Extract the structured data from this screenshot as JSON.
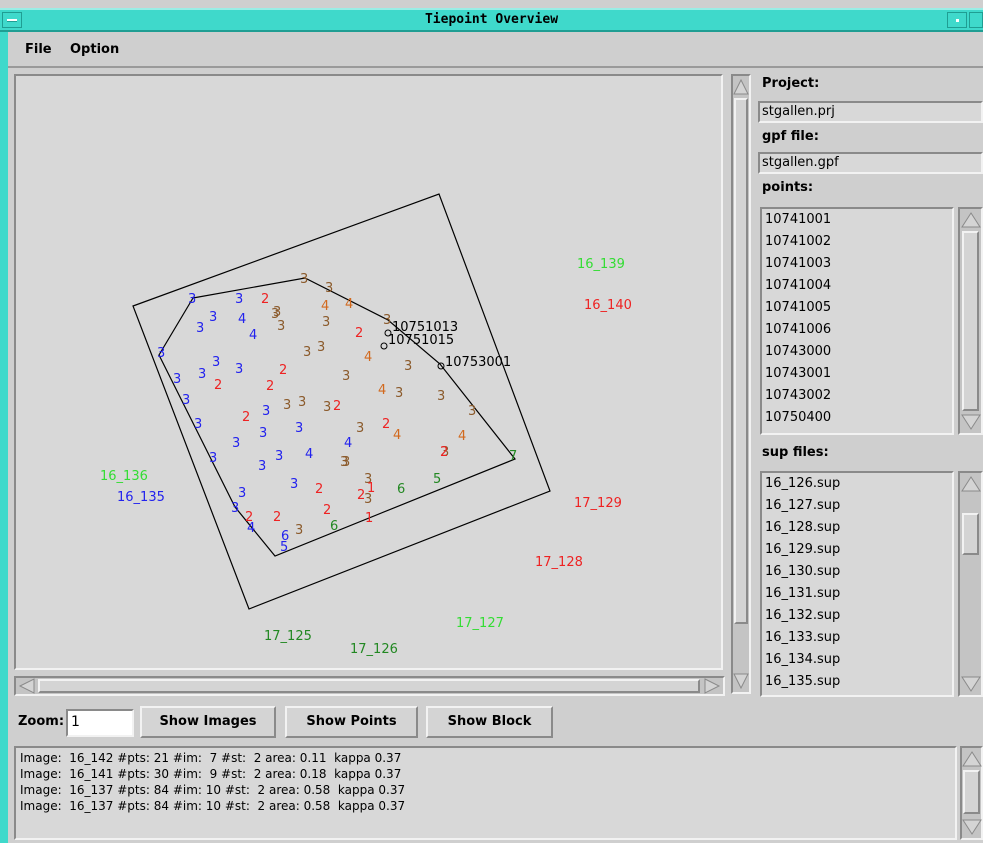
{
  "window": {
    "title": "Tiepoint Overview"
  },
  "menu": [
    "File",
    "Option"
  ],
  "project": {
    "label": "Project:",
    "value": "stgallen.prj"
  },
  "gpf": {
    "label": "gpf file:",
    "value": "stgallen.gpf"
  },
  "points": {
    "label": "points:",
    "items": [
      "10741001",
      "10741002",
      "10741003",
      "10741004",
      "10741005",
      "10741006",
      "10743000",
      "10743001",
      "10743002",
      "10750400"
    ]
  },
  "sup": {
    "label": "sup files:",
    "items": [
      "16_126.sup",
      "16_127.sup",
      "16_128.sup",
      "16_129.sup",
      "16_130.sup",
      "16_131.sup",
      "16_132.sup",
      "16_133.sup",
      "16_134.sup",
      "16_135.sup"
    ]
  },
  "zoom": {
    "label": "Zoom:",
    "value": "1"
  },
  "buttons": {
    "show_images": "Show Images",
    "show_points": "Show Points",
    "show_block": "Show Block"
  },
  "log": [
    "Image:  16_142 #pts: 21 #im:  7 #st:  2 area: 0.11  kappa 0.37",
    "Image:  16_141 #pts: 30 #im:  9 #st:  2 area: 0.18  kappa 0.37",
    "Image:  16_137 #pts: 84 #im: 10 #st:  2 area: 0.58  kappa 0.37",
    "Image:  16_137 #pts: 84 #im: 10 #st:  2 area: 0.58  kappa 0.37"
  ],
  "canvas": {
    "image_labels": [
      {
        "text": "16_139",
        "color": "#33dd33"
      },
      {
        "text": "16_140",
        "color": "#ee2222"
      },
      {
        "text": "16_136",
        "color": "#33dd33"
      },
      {
        "text": "16_135",
        "color": "#2222ee"
      },
      {
        "text": "17_129",
        "color": "#ee2222"
      },
      {
        "text": "17_128",
        "color": "#ee2222"
      },
      {
        "text": "17_127",
        "color": "#33dd33"
      },
      {
        "text": "17_125",
        "color": "#228822"
      },
      {
        "text": "17_126",
        "color": "#228822"
      }
    ],
    "point_labels": [
      {
        "text": "10751013"
      },
      {
        "text": "10751015"
      },
      {
        "text": "10753001"
      }
    ],
    "digits": [
      {
        "t": "3",
        "c": "#2222ee"
      },
      {
        "t": "3",
        "c": "#2222ee"
      },
      {
        "t": "2",
        "c": "#ee2222"
      },
      {
        "t": "3",
        "c": "#8b5a2b"
      },
      {
        "t": "3",
        "c": "#8b5a2b"
      },
      {
        "t": "3",
        "c": "#8b5a2b"
      },
      {
        "t": "4",
        "c": "#d2691e"
      },
      {
        "t": "3",
        "c": "#2222ee"
      },
      {
        "t": "3",
        "c": "#2222ee"
      },
      {
        "t": "4",
        "c": "#2222ee"
      },
      {
        "t": "3",
        "c": "#8b5a2b"
      },
      {
        "t": "4",
        "c": "#2222ee"
      },
      {
        "t": "3",
        "c": "#8b5a2b"
      },
      {
        "t": "3",
        "c": "#8b5a2b"
      },
      {
        "t": "4",
        "c": "#d2691e"
      },
      {
        "t": "2",
        "c": "#ee2222"
      },
      {
        "t": "3",
        "c": "#8b5a2b"
      },
      {
        "t": "3",
        "c": "#2222ee"
      },
      {
        "t": "3",
        "c": "#2222ee"
      },
      {
        "t": "3",
        "c": "#2222ee"
      },
      {
        "t": "3",
        "c": "#2222ee"
      },
      {
        "t": "3",
        "c": "#2222ee"
      },
      {
        "t": "2",
        "c": "#ee2222"
      },
      {
        "t": "3",
        "c": "#8b5a2b"
      },
      {
        "t": "3",
        "c": "#8b5a2b"
      },
      {
        "t": "4",
        "c": "#d2691e"
      },
      {
        "t": "3",
        "c": "#8b5a2b"
      },
      {
        "t": "3",
        "c": "#8b5a2b"
      },
      {
        "t": "3",
        "c": "#2222ee"
      },
      {
        "t": "3",
        "c": "#2222ee"
      },
      {
        "t": "2",
        "c": "#ee2222"
      },
      {
        "t": "2",
        "c": "#ee2222"
      },
      {
        "t": "3",
        "c": "#8b5a2b"
      },
      {
        "t": "3",
        "c": "#2222ee"
      },
      {
        "t": "3",
        "c": "#8b5a2b"
      },
      {
        "t": "3",
        "c": "#8b5a2b"
      },
      {
        "t": "2",
        "c": "#ee2222"
      },
      {
        "t": "4",
        "c": "#d2691e"
      },
      {
        "t": "3",
        "c": "#8b5a2b"
      },
      {
        "t": "3",
        "c": "#8b5a2b"
      },
      {
        "t": "3",
        "c": "#8b5a2b"
      },
      {
        "t": "3",
        "c": "#2222ee"
      },
      {
        "t": "3",
        "c": "#2222ee"
      },
      {
        "t": "2",
        "c": "#ee2222"
      },
      {
        "t": "3",
        "c": "#2222ee"
      },
      {
        "t": "4",
        "c": "#2222ee"
      },
      {
        "t": "3",
        "c": "#8b5a2b"
      },
      {
        "t": "2",
        "c": "#ee2222"
      },
      {
        "t": "4",
        "c": "#d2691e"
      },
      {
        "t": "4",
        "c": "#d2691e"
      },
      {
        "t": "3",
        "c": "#8b5a2b"
      },
      {
        "t": "3",
        "c": "#8b5a2b"
      },
      {
        "t": "3",
        "c": "#2222ee"
      },
      {
        "t": "3",
        "c": "#2222ee"
      },
      {
        "t": "3",
        "c": "#2222ee"
      },
      {
        "t": "4",
        "c": "#2222ee"
      },
      {
        "t": "3",
        "c": "#8b5a2b"
      },
      {
        "t": "3",
        "c": "#8b5a2b"
      },
      {
        "t": "2",
        "c": "#ee2222"
      },
      {
        "t": "7",
        "c": "#228822"
      },
      {
        "t": "3",
        "c": "#2222ee"
      },
      {
        "t": "3",
        "c": "#2222ee"
      },
      {
        "t": "2",
        "c": "#ee2222"
      },
      {
        "t": "3",
        "c": "#8b5a2b"
      },
      {
        "t": "2",
        "c": "#ee2222"
      },
      {
        "t": "1",
        "c": "#ee2222"
      },
      {
        "t": "6",
        "c": "#228822"
      },
      {
        "t": "5",
        "c": "#228822"
      },
      {
        "t": "3",
        "c": "#2222ee"
      },
      {
        "t": "2",
        "c": "#ee2222"
      },
      {
        "t": "2",
        "c": "#ee2222"
      },
      {
        "t": "1",
        "c": "#ee2222"
      },
      {
        "t": "4",
        "c": "#2222ee"
      },
      {
        "t": "2",
        "c": "#ee2222"
      },
      {
        "t": "6",
        "c": "#2222ee"
      },
      {
        "t": "3",
        "c": "#8b5a2b"
      },
      {
        "t": "6",
        "c": "#228822"
      },
      {
        "t": "5",
        "c": "#2222ee"
      },
      {
        "t": "2",
        "c": "#ee2222"
      }
    ]
  }
}
